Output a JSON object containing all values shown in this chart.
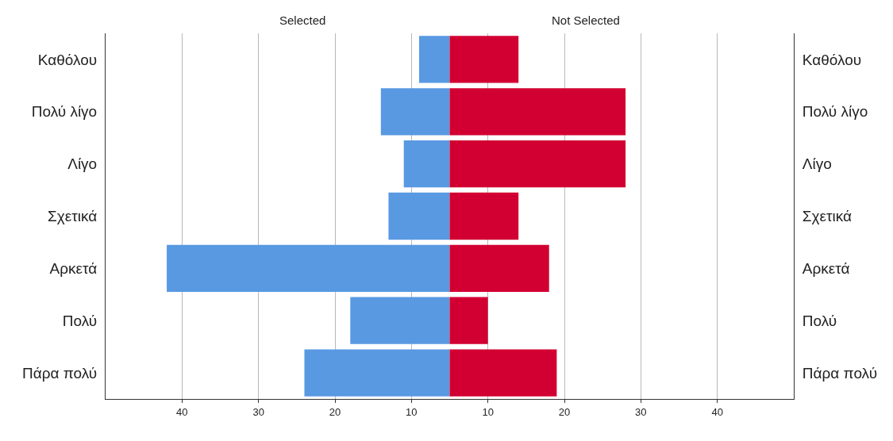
{
  "chart_data": [
    {
      "type": "bar",
      "orientation": "horizontal",
      "title": "Selected",
      "categories": [
        "Καθόλου",
        "Πολύ λίγο",
        "Λίγο",
        "Σχετικά",
        "Αρκετά",
        "Πολύ",
        "Πάρα πολύ"
      ],
      "values": [
        9,
        14,
        11,
        13,
        42,
        18,
        24
      ],
      "color": "#5899e2",
      "xlim": [
        50,
        5
      ],
      "xticks": [
        40,
        30,
        20,
        10
      ],
      "grid": "x"
    },
    {
      "type": "bar",
      "orientation": "horizontal",
      "title": "Not Selected",
      "categories": [
        "Καθόλου",
        "Πολύ λίγο",
        "Λίγο",
        "Σχετικά",
        "Αρκετά",
        "Πολύ",
        "Πάρα πολύ"
      ],
      "values": [
        14,
        28,
        28,
        14,
        18,
        10,
        19
      ],
      "color": "#d20032",
      "xlim": [
        5,
        50
      ],
      "xticks": [
        10,
        20,
        30,
        40
      ],
      "grid": "x"
    }
  ]
}
